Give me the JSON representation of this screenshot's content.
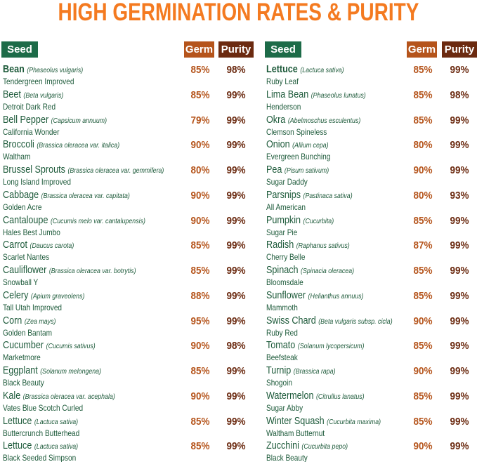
{
  "title": "HIGH GERMINATION RATES & PURITY",
  "tables": [
    {
      "headers": [
        "Seed",
        "Germ",
        "Purity"
      ],
      "rows": [
        [
          "Bean",
          "(Phaseolus vulgaris)",
          "Tendergreen Improved",
          "85%",
          "98%"
        ],
        [
          "Beet",
          "(Beta vulgaris)",
          "Detroit Dark Red",
          "85%",
          "99%"
        ],
        [
          "Bell Pepper",
          "(Capsicum annuum)",
          "California Wonder",
          "79%",
          "99%"
        ],
        [
          "Broccoli",
          "(Brassica oleracea var. italica)",
          "Waltham",
          "90%",
          "99%"
        ],
        [
          "Brussel Sprouts",
          "(Brassica oleracea var. gemmifera)",
          "Long Island Improved",
          "80%",
          "99%"
        ],
        [
          "Cabbage",
          "(Brassica oleracea var. capitata)",
          "Golden Acre",
          "90%",
          "99%"
        ],
        [
          "Cantaloupe",
          "(Cucumis melo var. cantalupensis)",
          "Hales Best Jumbo",
          "90%",
          "99%"
        ],
        [
          "Carrot",
          "(Daucus carota)",
          "Scarlet Nantes",
          "85%",
          "99%"
        ],
        [
          "Cauliflower",
          "(Brassica oleracea var. botrytis)",
          "Snowball Y",
          "85%",
          "99%"
        ],
        [
          "Celery",
          "(Apium graveolens)",
          "Tall Utah Improved",
          "88%",
          "99%"
        ],
        [
          "Corn",
          "(Zea mays)",
          "Golden Bantam",
          "95%",
          "99%"
        ],
        [
          "Cucumber",
          "(Cucumis sativus)",
          "Marketmore",
          "90%",
          "98%"
        ],
        [
          "Eggplant",
          "(Solanum melongena)",
          "Black Beauty",
          "85%",
          "99%"
        ],
        [
          "Kale",
          "(Brassica oleracea var. acephala)",
          "Vates Blue Scotch Curled",
          "90%",
          "99%"
        ],
        [
          "Lettuce",
          "(Lactuca sativa)",
          "Buttercrunch Butterhead",
          "85%",
          "99%"
        ],
        [
          "Lettuce",
          "(Lactuca sativa)",
          "Black Seeded Simpson",
          "85%",
          "99%"
        ]
      ]
    },
    {
      "headers": [
        "Seed",
        "Germ",
        "Purity"
      ],
      "rows": [
        [
          "Lettuce",
          "(Lactuca sativa)",
          "Ruby Leaf",
          "85%",
          "99%"
        ],
        [
          "Lima Bean",
          "(Phaseolus lunatus)",
          "Henderson",
          "85%",
          "98%"
        ],
        [
          "Okra",
          "(Abelmoschus esculentus)",
          "Clemson Spineless",
          "85%",
          "99%"
        ],
        [
          "Onion",
          "(Allium cepa)",
          "Evergreen Bunching",
          "80%",
          "99%"
        ],
        [
          "Pea",
          "(Pisum sativum)",
          "Sugar Daddy",
          "90%",
          "99%"
        ],
        [
          "Parsnips",
          "(Pastinaca sativa)",
          "All American",
          "80%",
          "93%"
        ],
        [
          "Pumpkin",
          "(Cucurbita)",
          "Sugar Pie",
          "85%",
          "99%"
        ],
        [
          "Radish",
          "(Raphanus sativus)",
          "Cherry Belle",
          "87%",
          "99%"
        ],
        [
          "Spinach",
          "(Spinacia oleracea)",
          "Bloomsdale",
          "85%",
          "99%"
        ],
        [
          "Sunflower",
          "(Helianthus annuus)",
          "Mammoth",
          "85%",
          "99%"
        ],
        [
          "Swiss Chard",
          "(Beta vulgaris subsp. cicla)",
          "Ruby Red",
          "90%",
          "99%"
        ],
        [
          "Tomato",
          "(Solanum lycopersicum)",
          "Beefsteak",
          "85%",
          "99%"
        ],
        [
          "Turnip",
          "(Brassica rapa)",
          "Shogoin",
          "90%",
          "99%"
        ],
        [
          "Watermelon",
          "(Citrullus lanatus)",
          "Sugar Abby",
          "85%",
          "99%"
        ],
        [
          "Winter Squash",
          "(Cucurbita maxima)",
          "Waltham Butternut",
          "85%",
          "99%"
        ],
        [
          "Zucchini",
          "(Cucurbita pepo)",
          "Black Beauty",
          "90%",
          "99%"
        ]
      ]
    }
  ]
}
